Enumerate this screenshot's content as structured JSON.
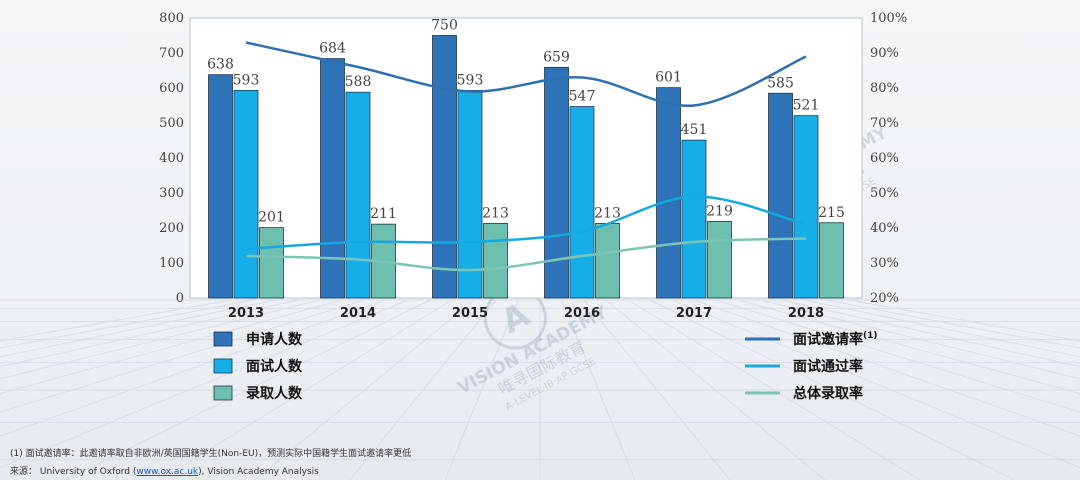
{
  "chart_data": {
    "type": "bar",
    "categories": [
      "2013",
      "2014",
      "2015",
      "2016",
      "2017",
      "2018"
    ],
    "y_left": {
      "min": 0,
      "max": 800,
      "step": 100,
      "ticks": [
        "0",
        "100",
        "200",
        "300",
        "400",
        "500",
        "600",
        "700",
        "800"
      ]
    },
    "y_right": {
      "min": 20,
      "max": 100,
      "step": 10,
      "ticks": [
        "20%",
        "30%",
        "40%",
        "50%",
        "60%",
        "70%",
        "80%",
        "90%",
        "100%"
      ]
    },
    "bar_series": [
      {
        "name": "申请人数",
        "values": [
          638,
          684,
          750,
          659,
          601,
          585
        ],
        "color": "#2e73b8"
      },
      {
        "name": "面试人数",
        "values": [
          593,
          588,
          593,
          547,
          451,
          521
        ],
        "color": "#16aee9"
      },
      {
        "name": "录取人数",
        "values": [
          201,
          211,
          213,
          213,
          219,
          215
        ],
        "color": "#6dbfae"
      }
    ],
    "line_series": [
      {
        "name": "面试邀请率",
        "superscript": "(1)",
        "values": [
          93,
          86,
          79,
          83,
          75,
          89
        ],
        "color": "#2e6fb0"
      },
      {
        "name": "面试通过率",
        "values": [
          34,
          36,
          36,
          39,
          49,
          41
        ],
        "color": "#14a9e4"
      },
      {
        "name": "总体录取率",
        "values": [
          32,
          31,
          28,
          32,
          36,
          37
        ],
        "color": "#7cc4b6"
      }
    ],
    "grid": false,
    "legend_position": "bottom"
  },
  "footnote_1": "(1) 面试邀请率：此邀请率取自非欧洲/英国国籍学生(Non-EU)，预测实际中国籍学生面试邀请率更低",
  "source": {
    "prefix": "来源：  University of Oxford (",
    "link": "www.ox.ac.uk",
    "suffix": "), Vision Academy Analysis"
  },
  "watermark": {
    "brand": "VISION ACADEMY",
    "chinese": "唯寻国际教育",
    "subtitle": "A-LEVEL·IB·AP·GCSE",
    "logo_letter": "A"
  }
}
